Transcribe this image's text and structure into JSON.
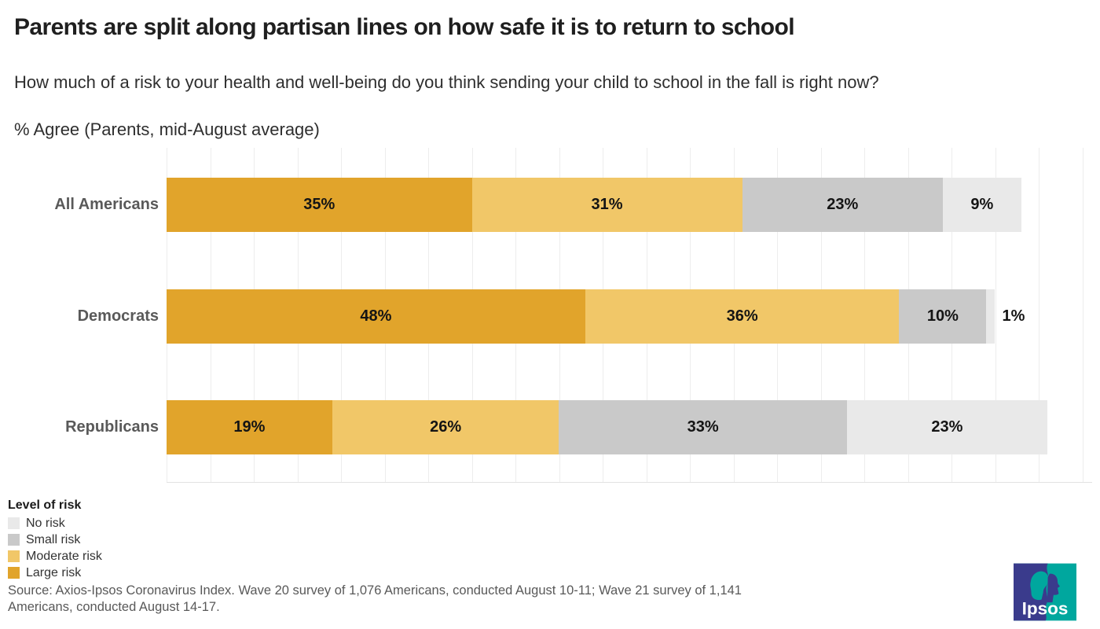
{
  "header": {
    "title": "Parents are split along partisan lines on how safe it is to return to school",
    "subtitle": "How much of a risk to your health and well-being do you think sending your child to school in the fall is right now?",
    "note": "% Agree (Parents, mid-August average)"
  },
  "chart_data": {
    "type": "bar",
    "orientation": "horizontal-stacked",
    "title": "Parents are split along partisan lines on how safe it is to return to school",
    "categories": [
      "All Americans",
      "Democrats",
      "Republicans"
    ],
    "series": [
      {
        "name": "Large risk",
        "color": "#e1a42b",
        "values": [
          35,
          48,
          19
        ]
      },
      {
        "name": "Moderate risk",
        "color": "#f1c768",
        "values": [
          31,
          36,
          26
        ]
      },
      {
        "name": "Small risk",
        "color": "#c9c9c9",
        "values": [
          23,
          10,
          33
        ]
      },
      {
        "name": "No risk",
        "color": "#e9e9e9",
        "values": [
          9,
          1,
          23
        ]
      }
    ],
    "value_suffix": "%",
    "xlim": [
      0,
      105
    ],
    "gridline_step_pct": 5,
    "grid": true,
    "axis_tick_labels": "none",
    "legend_position": "bottom-left"
  },
  "legend": {
    "title": "Level of risk",
    "items": [
      {
        "label": "No risk",
        "color": "#e9e9e9"
      },
      {
        "label": "Small risk",
        "color": "#c9c9c9"
      },
      {
        "label": "Moderate risk",
        "color": "#f1c768"
      },
      {
        "label": "Large risk",
        "color": "#e1a42b"
      }
    ]
  },
  "source": "Source: Axios-Ipsos Coronavirus Index. Wave 20 survey of 1,076 Americans, conducted August 10-11; Wave 21 survey of 1,141 Americans, conducted August 14-17.",
  "logo": {
    "text": "Ipsos",
    "teal": "#00a79e",
    "indigo": "#3a3b8c",
    "text_color": "#ffffff"
  }
}
